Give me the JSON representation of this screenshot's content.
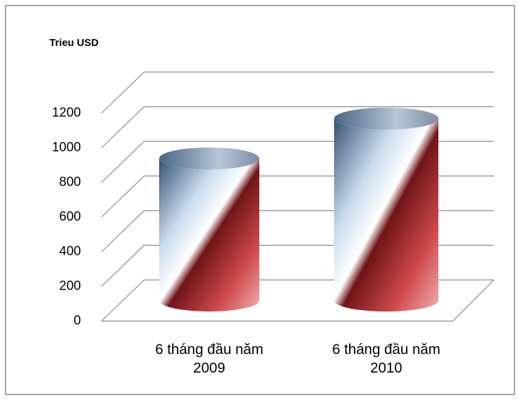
{
  "chart_data": {
    "type": "cylinder",
    "y_axis_title": "Trieu USD",
    "categories": [
      "6 tháng đầu năm 2009",
      "6 tháng đầu năm 2010"
    ],
    "values": [
      820,
      1050
    ],
    "ylim": [
      0,
      1200
    ],
    "yticks": [
      0,
      200,
      400,
      600,
      800,
      1000,
      1200
    ],
    "grid": true
  }
}
